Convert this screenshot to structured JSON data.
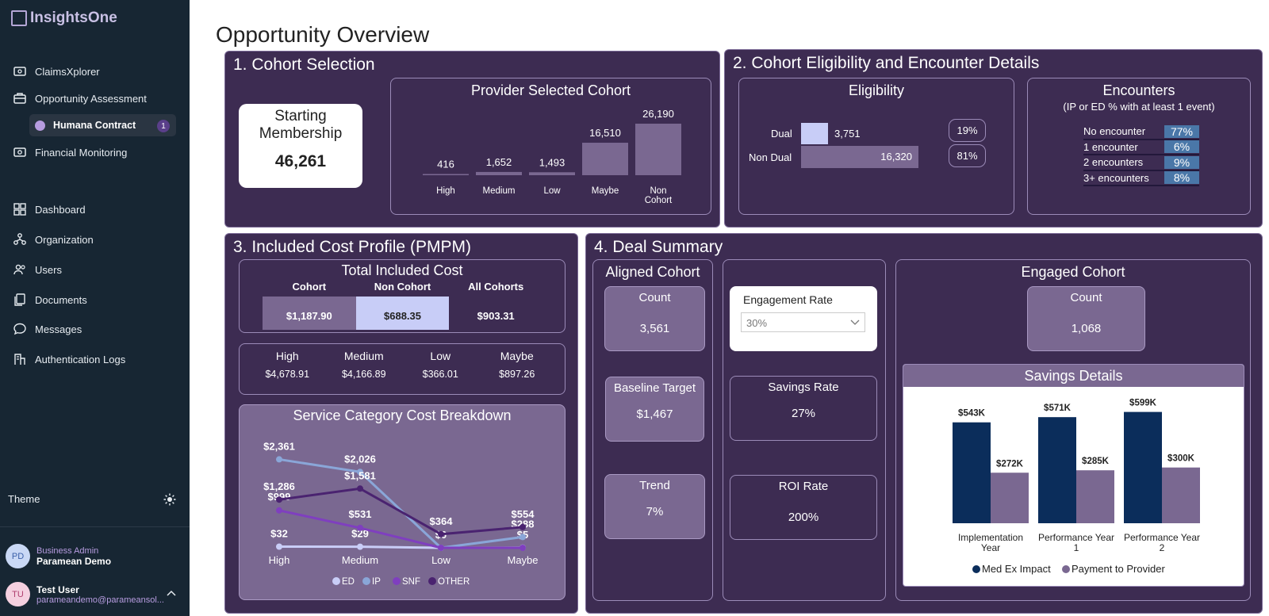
{
  "app": {
    "logo": "InsightsOne"
  },
  "sidebar": {
    "items": [
      {
        "label": "ClaimsXplorer",
        "icon": "claims-icon"
      },
      {
        "label": "Opportunity Assessment",
        "icon": "briefcase-icon"
      },
      {
        "label": "Financial Monitoring",
        "icon": "money-icon"
      },
      {
        "label": "Dashboard",
        "icon": "dashboard-icon"
      },
      {
        "label": "Organization",
        "icon": "organization-icon"
      },
      {
        "label": "Users",
        "icon": "users-icon"
      },
      {
        "label": "Documents",
        "icon": "documents-icon"
      },
      {
        "label": "Messages",
        "icon": "messages-icon"
      },
      {
        "label": "Authentication Logs",
        "icon": "auth-logs-icon"
      }
    ],
    "sub_item": {
      "label": "Humana Contract",
      "badge": "1"
    },
    "theme_label": "Theme",
    "org": {
      "initials": "PD",
      "role": "Business Admin",
      "name": "Paramean Demo"
    },
    "user": {
      "initials": "TU",
      "name": "Test User",
      "email": "parameandemo@parameansol..."
    }
  },
  "page": {
    "title": "Opportunity Overview"
  },
  "s1": {
    "title": "1. Cohort Selection",
    "starting_label_line1": "Starting",
    "starting_label_line2": "Membership",
    "starting_value": "46,261",
    "chart_title": "Provider Selected Cohort"
  },
  "s2": {
    "title": "2. Cohort Eligibility and Encounter Details",
    "eligibility_title": "Eligibility",
    "dual_label": "Dual",
    "dual_value": "3,751",
    "dual_pct": "19%",
    "nondual_label": "Non Dual",
    "nondual_value": "16,320",
    "nondual_pct": "81%",
    "encounters_title": "Encounters",
    "encounters_sub": "(IP or ED % with at least 1 event)",
    "encounters": [
      {
        "label": "No encounter",
        "pct": "77%"
      },
      {
        "label": "1 encounter",
        "pct": "6%"
      },
      {
        "label": "2 encounters",
        "pct": "9%"
      },
      {
        "label": "3+ encounters",
        "pct": "8%"
      }
    ]
  },
  "s3": {
    "title": "3. Included Cost Profile (PMPM)",
    "tic_title": "Total Included Cost",
    "tic_cols": [
      {
        "label": "Cohort",
        "value": "$1,187.90"
      },
      {
        "label": "Non Cohort",
        "value": "$688.35"
      },
      {
        "label": "All Cohorts",
        "value": "$903.31"
      }
    ],
    "levels": [
      {
        "label": "High",
        "value": "$4,678.91"
      },
      {
        "label": "Medium",
        "value": "$4,166.89"
      },
      {
        "label": "Low",
        "value": "$366.01"
      },
      {
        "label": "Maybe",
        "value": "$897.26"
      }
    ],
    "svc_title": "Service Category Cost Breakdown"
  },
  "s4": {
    "title": "4. Deal Summary",
    "aligned_title": "Aligned Cohort",
    "count_label": "Count",
    "count_value": "3,561",
    "baseline_label": "Baseline Target",
    "baseline_value": "$1,467",
    "trend_label": "Trend",
    "trend_value": "7%",
    "engagement_label": "Engagement Rate",
    "engagement_value": "30%",
    "savings_rate_label": "Savings Rate",
    "savings_rate_value": "27%",
    "roi_label": "ROI Rate",
    "roi_value": "200%",
    "engaged_title": "Engaged Cohort",
    "engaged_count_label": "Count",
    "engaged_count_value": "1,068",
    "savings_title": "Savings Details"
  },
  "colors": {
    "purple_dark": "#3d2c52",
    "tile": "#7a6891",
    "navy": "#0b2d5b",
    "gray_purple": "#7a6891"
  },
  "chart_data": [
    {
      "type": "bar",
      "title": "Provider Selected Cohort",
      "categories": [
        "High",
        "Medium",
        "Low",
        "Maybe",
        "Non\nCohort"
      ],
      "values": [
        416,
        1652,
        1493,
        16510,
        26190
      ],
      "value_labels": [
        "416",
        "1,652",
        "1,493",
        "16,510",
        "26,190"
      ]
    },
    {
      "type": "bar",
      "title": "Eligibility",
      "categories": [
        "Dual",
        "Non Dual"
      ],
      "values": [
        3751,
        16320
      ]
    },
    {
      "type": "line",
      "title": "Service Category Cost Breakdown",
      "categories": [
        "High",
        "Medium",
        "Low",
        "Maybe"
      ],
      "ylim": [
        0,
        2500
      ],
      "series": [
        {
          "name": "ED",
          "values": [
            32,
            29,
            0,
            5
          ],
          "labels": [
            "$32",
            "$29",
            "$0",
            "$5"
          ],
          "color": "#c9cdf7"
        },
        {
          "name": "IP",
          "values": [
            2361,
            2026,
            0,
            288
          ],
          "labels": [
            "$2,361",
            "$2,026",
            "",
            "$288"
          ],
          "color": "#8aa6d8"
        },
        {
          "name": "SNF",
          "values": [
            999,
            531,
            0,
            0
          ],
          "labels": [
            "$999",
            "$531",
            "",
            ""
          ],
          "color": "#7f3fbf"
        },
        {
          "name": "OTHER",
          "values": [
            1286,
            1581,
            364,
            554
          ],
          "labels": [
            "$1,286",
            "$1,581",
            "$364",
            "$554"
          ],
          "color": "#4a2370"
        }
      ]
    },
    {
      "type": "bar",
      "title": "Savings Details",
      "categories": [
        "Implementation\nYear",
        "Performance Year\n1",
        "Performance Year\n2"
      ],
      "series": [
        {
          "name": "Med Ex Impact",
          "values": [
            543,
            571,
            599
          ],
          "labels": [
            "$543K",
            "$571K",
            "$599K"
          ],
          "color": "#0b2d5b"
        },
        {
          "name": "Payment to Provider",
          "values": [
            272,
            285,
            300
          ],
          "labels": [
            "$272K",
            "$285K",
            "$300K"
          ],
          "color": "#7a6891"
        }
      ],
      "ylim": [
        0,
        640
      ]
    }
  ]
}
